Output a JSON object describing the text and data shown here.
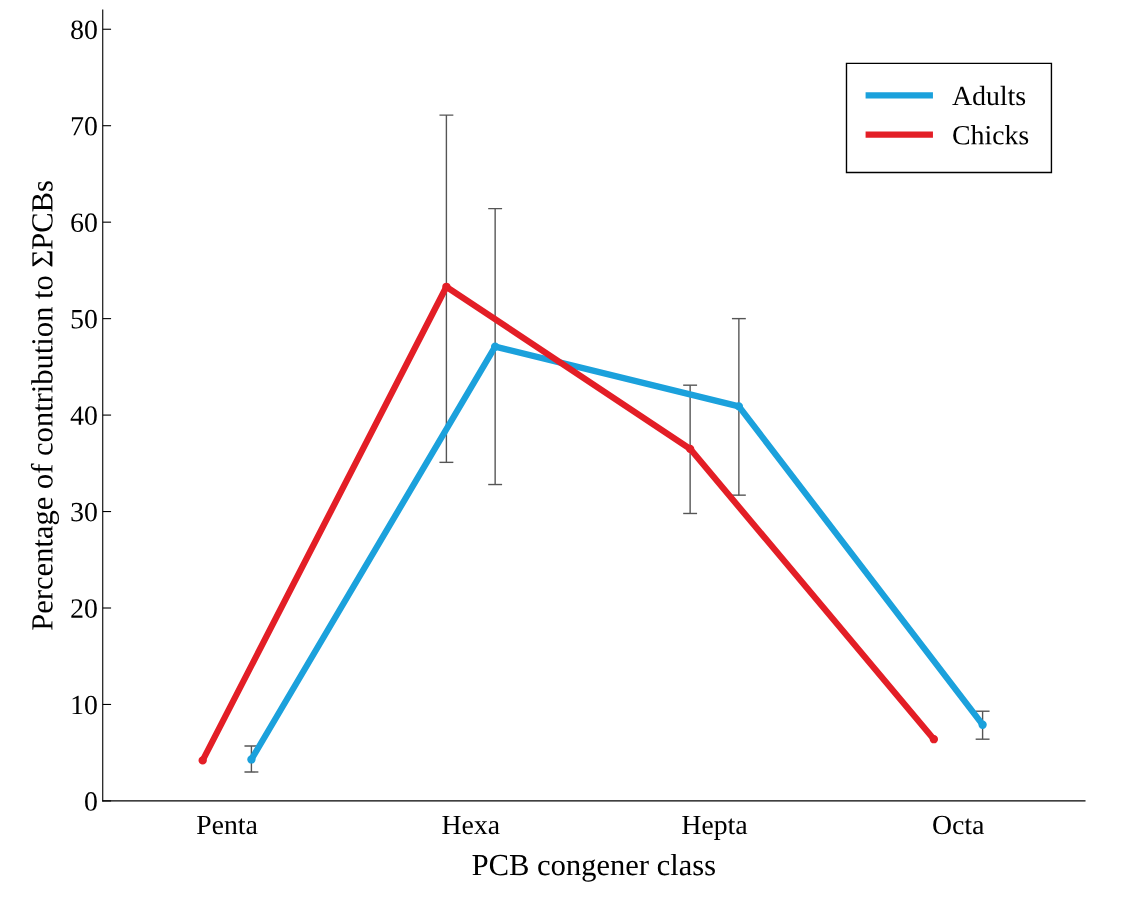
{
  "chart_data": {
    "type": "line",
    "xlabel": "PCB congener class",
    "ylabel": "Percentage of contribution to ΣPCBs",
    "categories": [
      "Penta",
      "Hexa",
      "Hepta",
      "Octa"
    ],
    "series": [
      {
        "name": "Adults",
        "color": "#1ba1dc",
        "values": [
          4.3,
          47.1,
          40.9,
          7.9
        ],
        "errors": [
          [
            3.0,
            5.7
          ],
          [
            32.8,
            61.4
          ],
          [
            31.7,
            50.0
          ],
          [
            6.4,
            9.3
          ]
        ]
      },
      {
        "name": "Chicks",
        "color": "#e31e26",
        "values": [
          4.2,
          53.3,
          36.5,
          6.4
        ],
        "errors": [
          null,
          [
            35.1,
            71.1
          ],
          [
            29.8,
            43.1
          ],
          null
        ]
      }
    ],
    "ylim": [
      0,
      82
    ],
    "yticks": [
      0,
      10,
      20,
      30,
      40,
      50,
      60,
      70,
      80
    ],
    "legend": "top right",
    "grid": false,
    "marker": "circle",
    "line_style": "solid"
  }
}
